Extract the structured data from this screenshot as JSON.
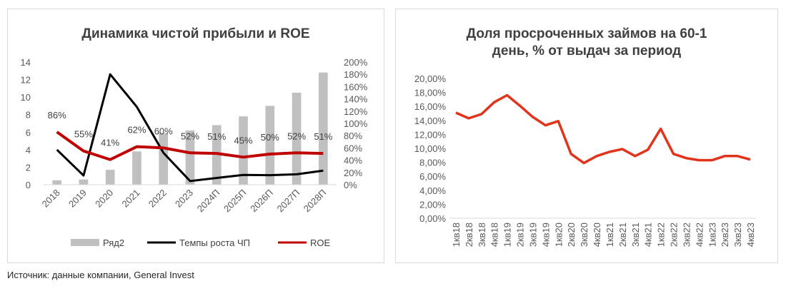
{
  "source": "Источник: данные компании, General Invest",
  "colors": {
    "bar": "#c0c0c0",
    "growth_line": "#000000",
    "roe_line": "#c00000",
    "overdue_line": "#e2341d",
    "text": "#404040"
  },
  "chart_data": [
    {
      "type": "bar",
      "title": "Динамика чистой прибыли и ROE",
      "categories": [
        "2018",
        "2019",
        "2020",
        "2021",
        "2022",
        "2023",
        "2024П",
        "2025П",
        "2026П",
        "2027П",
        "2028П"
      ],
      "ylim": [
        0,
        14
      ],
      "y_ticks": [
        "0",
        "2",
        "4",
        "6",
        "8",
        "10",
        "12",
        "14"
      ],
      "y2lim": [
        0,
        2.0
      ],
      "y2_ticks": [
        "0%",
        "20%",
        "40%",
        "60%",
        "80%",
        "100%",
        "120%",
        "140%",
        "160%",
        "180%",
        "200%"
      ],
      "grid": false,
      "legend_position": "bottom",
      "series": [
        {
          "name": "Ряд2",
          "kind": "bar",
          "axis": "left",
          "values": [
            0.5,
            0.6,
            1.7,
            3.8,
            5.9,
            6.2,
            6.8,
            7.8,
            9.0,
            10.5,
            12.8
          ]
        },
        {
          "name": "Темпы роста ЧП",
          "kind": "line",
          "axis": "right",
          "values": [
            0.57,
            0.15,
            1.8,
            1.27,
            0.52,
            0.06,
            0.11,
            0.16,
            0.155,
            0.17,
            0.23
          ]
        },
        {
          "name": "ROE",
          "kind": "line",
          "axis": "right",
          "values": [
            0.86,
            0.55,
            0.41,
            0.62,
            0.6,
            0.52,
            0.51,
            0.45,
            0.5,
            0.52,
            0.51
          ],
          "labels": [
            "86%",
            "55%",
            "41%",
            "62%",
            "60%",
            "52%",
            "51%",
            "45%",
            "50%",
            "52%",
            "51%"
          ]
        }
      ]
    },
    {
      "type": "line",
      "title": "Доля просроченных займов на 60-1 день, % от выдач за период",
      "title_lines": [
        "Доля просроченных займов на 60-1",
        "день, % от выдач за период"
      ],
      "categories": [
        "1кв18",
        "2кв18",
        "3кв18",
        "4кв18",
        "1кв19",
        "2кв19",
        "3кв19",
        "4кв19",
        "1кв20",
        "2кв20",
        "3кв20",
        "4кв20",
        "1кв21",
        "2кв21",
        "3кв21",
        "4кв21",
        "1кв22",
        "2кв22",
        "3кв22",
        "4кв22",
        "1кв23",
        "2кв23",
        "3кв23",
        "4кв23"
      ],
      "ylim": [
        0,
        20
      ],
      "y_ticks": [
        "0,00%",
        "2,00%",
        "4,00%",
        "6,00%",
        "8,00%",
        "10,00%",
        "12,00%",
        "14,00%",
        "16,00%",
        "18,00%",
        "20,00%"
      ],
      "grid": false,
      "series": [
        {
          "values": [
            15.1,
            14.3,
            14.9,
            16.6,
            17.6,
            16.1,
            14.5,
            13.3,
            13.9,
            9.2,
            7.9,
            8.9,
            9.5,
            9.9,
            8.9,
            9.8,
            12.8,
            9.2,
            8.6,
            8.3,
            8.3,
            8.9,
            8.9,
            8.4
          ]
        }
      ]
    }
  ]
}
